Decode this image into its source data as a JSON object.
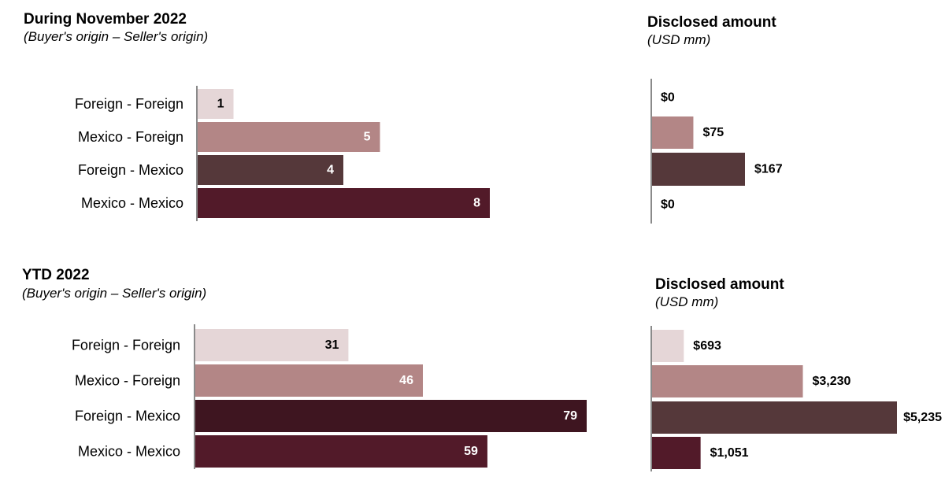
{
  "colors": {
    "foreign_foreign": "#e5d6d7",
    "mexico_foreign": "#b38686",
    "foreign_mexico_nov": "#55383a",
    "foreign_mexico_ytd": "#3e1520",
    "mexico_mexico": "#521a29",
    "label_dark": "#000000",
    "label_light": "#ffffff"
  },
  "chart_data": [
    {
      "id": "nov_count",
      "type": "bar",
      "orientation": "horizontal",
      "title": "During November 2022",
      "subtitle": "(Buyer's origin – Seller's origin)",
      "categories": [
        "Foreign - Foreign",
        "Mexico - Foreign",
        "Foreign - Mexico",
        "Mexico - Mexico"
      ],
      "values": [
        1,
        5,
        4,
        8
      ],
      "labels": [
        "1",
        "5",
        "4",
        "8"
      ],
      "xlim": [
        0,
        8
      ]
    },
    {
      "id": "nov_amount",
      "type": "bar",
      "orientation": "horizontal",
      "title": "Disclosed amount",
      "subtitle": "(USD mm)",
      "categories": [
        "Foreign - Foreign",
        "Mexico - Foreign",
        "Foreign - Mexico",
        "Mexico - Mexico"
      ],
      "values": [
        0,
        75,
        167,
        0
      ],
      "labels": [
        "$0",
        "$75",
        "$167",
        "$0"
      ],
      "xlim": [
        0,
        167
      ]
    },
    {
      "id": "ytd_count",
      "type": "bar",
      "orientation": "horizontal",
      "title": "YTD 2022",
      "subtitle": "(Buyer's origin – Seller's origin)",
      "categories": [
        "Foreign - Foreign",
        "Mexico - Foreign",
        "Foreign - Mexico",
        "Mexico - Mexico"
      ],
      "values": [
        31,
        46,
        79,
        59
      ],
      "labels": [
        "31",
        "46",
        "79",
        "59"
      ],
      "xlim": [
        0,
        79
      ]
    },
    {
      "id": "ytd_amount",
      "type": "bar",
      "orientation": "horizontal",
      "title": "Disclosed amount",
      "subtitle": "(USD mm)",
      "categories": [
        "Foreign - Foreign",
        "Mexico - Foreign",
        "Foreign - Mexico",
        "Mexico - Mexico"
      ],
      "values": [
        693,
        3230,
        5235,
        1051
      ],
      "labels": [
        "$693",
        "$3,230",
        "$5,235",
        "$1,051"
      ],
      "xlim": [
        0,
        5235
      ]
    }
  ]
}
